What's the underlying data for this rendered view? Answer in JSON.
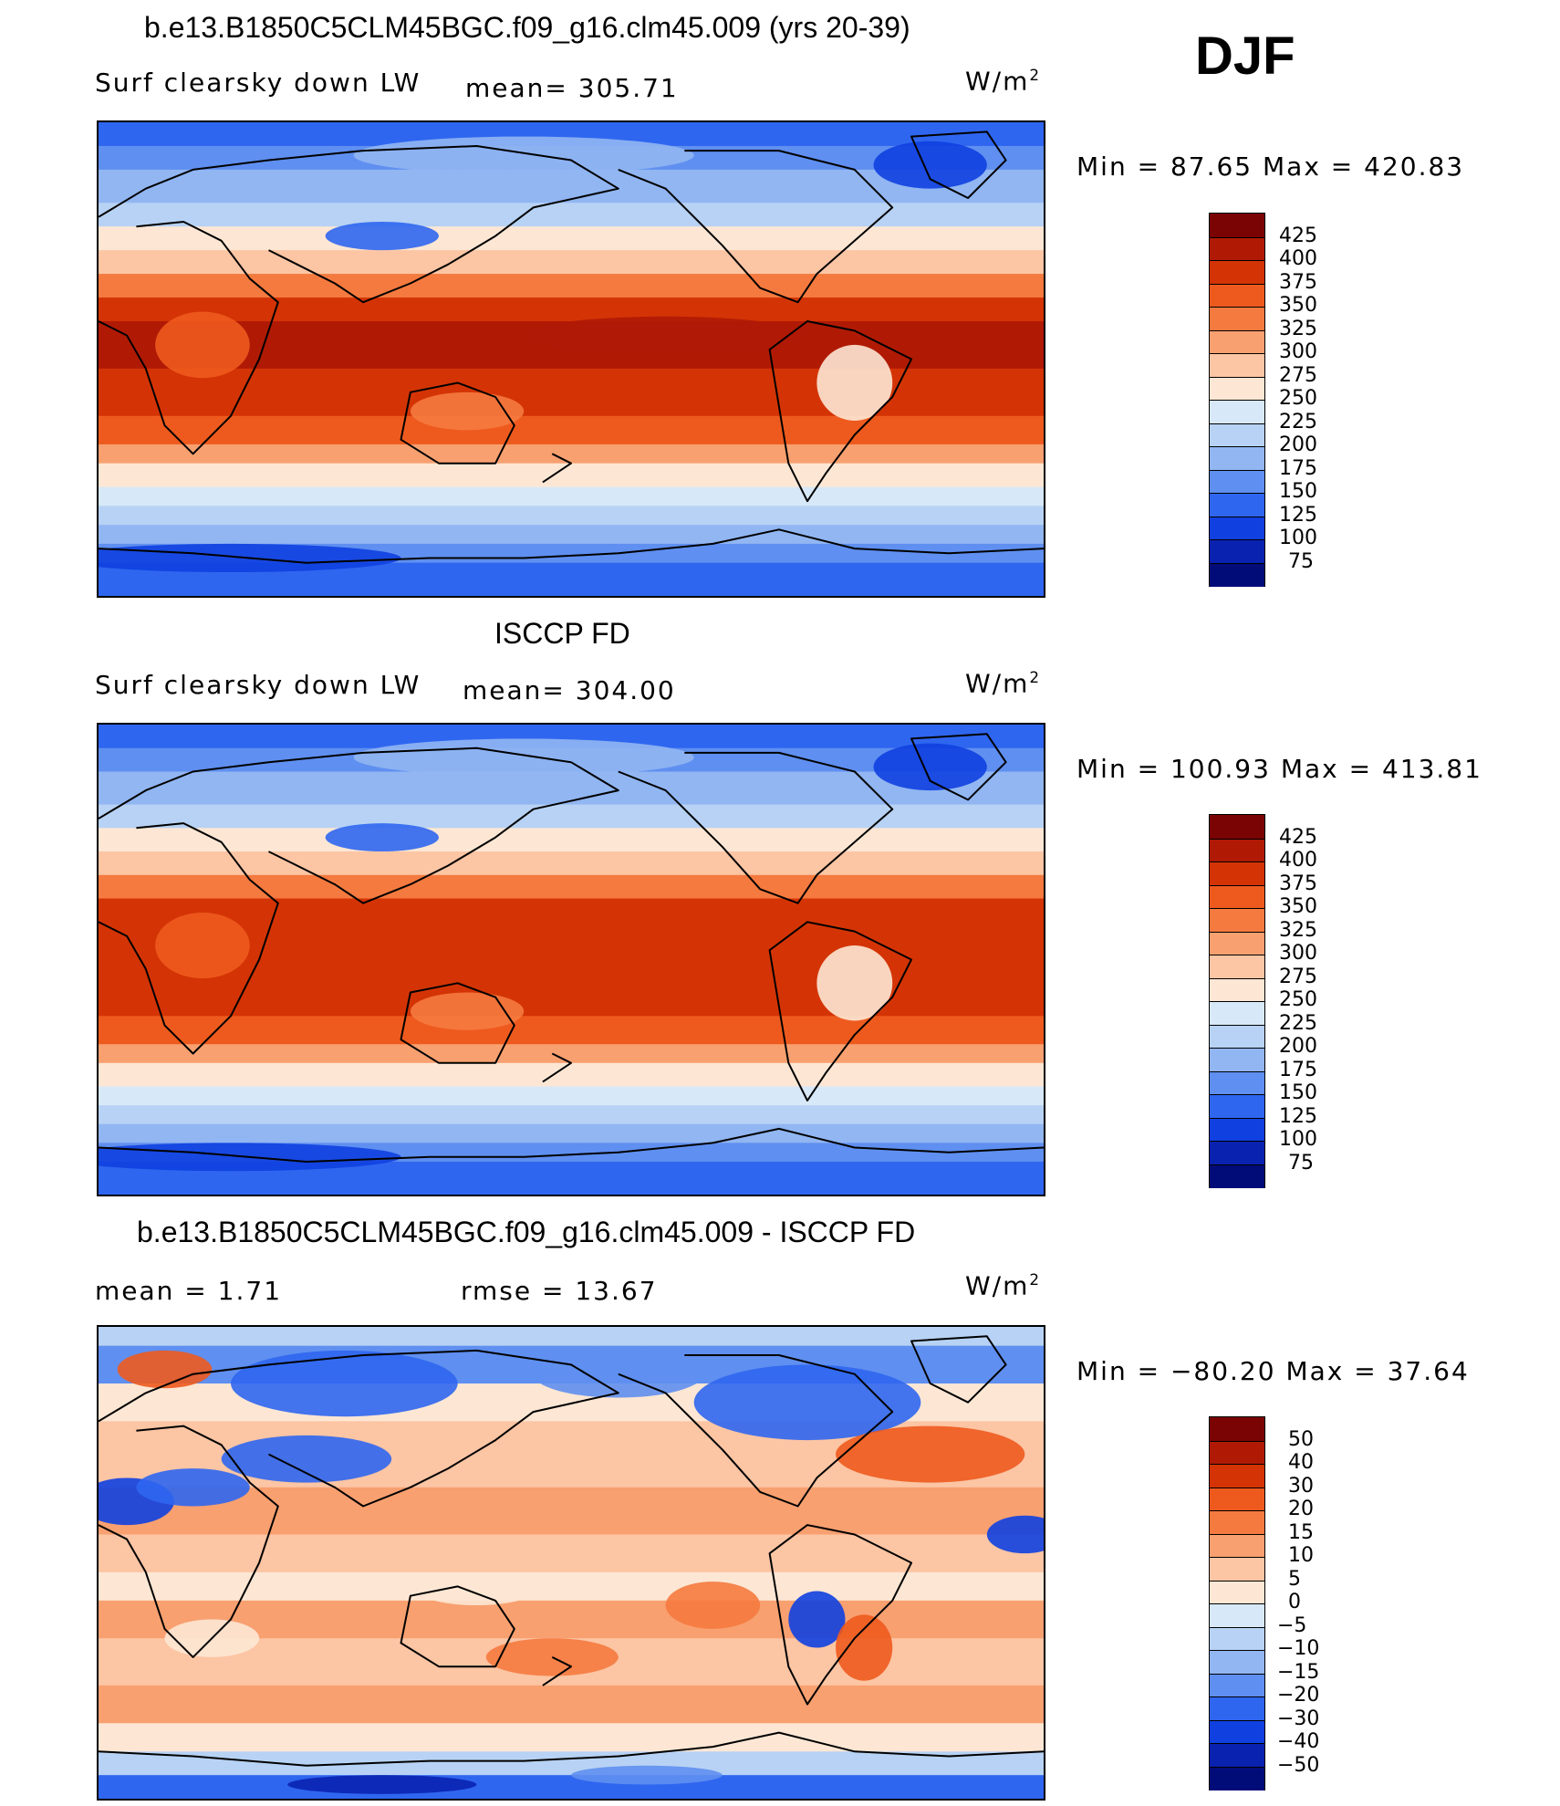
{
  "header": {
    "season": "DJF"
  },
  "units": "W/m",
  "units_sup": "2",
  "panels": [
    {
      "title": "b.e13.B1850C5CLM45BGC.f09_g16.clm45.009 (yrs 20-39)",
      "left_label": "Surf clearsky down LW",
      "center_label": "mean= 305.71",
      "minmax": "Min =   87.65 Max =  420.83",
      "colorbar_labels": [
        "425",
        "400",
        "375",
        "350",
        "325",
        "300",
        "275",
        "250",
        "225",
        "200",
        "175",
        "150",
        "125",
        "100",
        "75"
      ],
      "kind": "model"
    },
    {
      "title": "ISCCP FD",
      "left_label": "Surf clearsky down LW",
      "center_label": "mean= 304.00",
      "minmax": "Min = 100.93 Max = 413.81",
      "colorbar_labels": [
        "425",
        "400",
        "375",
        "350",
        "325",
        "300",
        "275",
        "250",
        "225",
        "200",
        "175",
        "150",
        "125",
        "100",
        "75"
      ],
      "kind": "obs"
    },
    {
      "title": "b.e13.B1850C5CLM45BGC.f09_g16.clm45.009 - ISCCP FD",
      "left_label": "mean =     1.71",
      "center_label": "rmse =    13.67",
      "minmax": "Min = −80.20 Max =   37.64",
      "colorbar_labels": [
        "50",
        "40",
        "30",
        "20",
        "15",
        "10",
        "5",
        "0",
        "−5",
        "−10",
        "−15",
        "−20",
        "−30",
        "−40",
        "−50"
      ],
      "kind": "diff"
    }
  ],
  "palette": {
    "abs": [
      "#7a0403",
      "#b01a05",
      "#d43405",
      "#ee5a1e",
      "#f57a3f",
      "#f8a070",
      "#fcc5a4",
      "#fde7d4",
      "#d7e8f8",
      "#b7d2f4",
      "#91b6f2",
      "#5f8ff0",
      "#2f66f0",
      "#1040e0",
      "#0a22b0",
      "#020c78"
    ],
    "diff": [
      "#7a0403",
      "#b01a05",
      "#d43405",
      "#ee5a1e",
      "#f57a3f",
      "#f8a070",
      "#fcc5a4",
      "#fde7d4",
      "#d7e8f8",
      "#b7d2f4",
      "#91b6f2",
      "#5f8ff0",
      "#2f66f0",
      "#1040e0",
      "#0a22b0",
      "#020c78"
    ]
  }
}
